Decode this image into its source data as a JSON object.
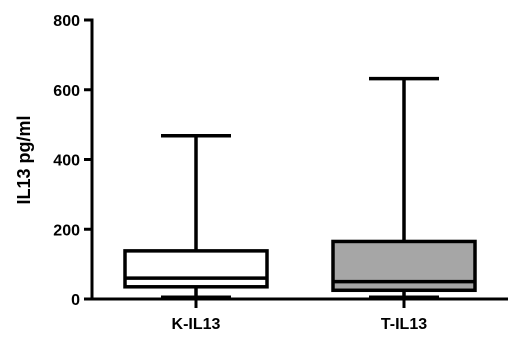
{
  "chart_data": {
    "type": "box",
    "title": "",
    "xlabel": "",
    "ylabel": "IL13 pg/ml",
    "ylim": [
      0,
      800
    ],
    "yticks": [
      0,
      200,
      400,
      600,
      800
    ],
    "grid": false,
    "categories": [
      "K-IL13",
      "T-IL13"
    ],
    "boxes": [
      {
        "category": "K-IL13",
        "min": 5,
        "q1": 35,
        "median": 60,
        "q3": 138,
        "max": 468,
        "fill": "#ffffff"
      },
      {
        "category": "T-IL13",
        "min": 5,
        "q1": 25,
        "median": 50,
        "q3": 165,
        "max": 632,
        "fill": "#a6a6a6"
      }
    ]
  }
}
